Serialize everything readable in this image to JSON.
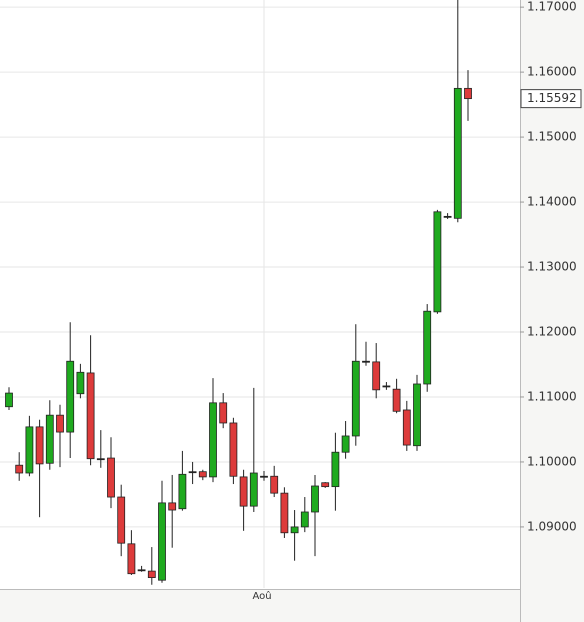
{
  "chart_data": {
    "type": "candlestick",
    "categories": [
      null,
      null,
      null,
      null,
      null,
      null,
      null,
      null,
      null,
      null,
      null,
      null,
      null,
      null,
      null,
      null,
      null,
      null,
      null,
      null,
      null,
      null,
      null,
      null,
      null,
      "Aoû",
      null,
      null,
      null,
      null,
      null,
      null,
      null,
      null,
      null,
      null,
      null,
      null,
      null,
      null,
      null,
      null,
      null,
      null,
      null,
      null
    ],
    "open": [
      1.1085,
      1.0995,
      1.0983,
      1.1054,
      1.0998,
      1.1072,
      1.1046,
      1.1105,
      1.1137,
      1.1005,
      1.1006,
      1.0946,
      1.0874,
      1.0834,
      1.0832,
      1.0818,
      1.0937,
      1.0928,
      1.0985,
      1.0985,
      1.0977,
      1.1091,
      1.106,
      1.0977,
      1.0932,
      1.0978,
      1.0978,
      1.0952,
      1.0891,
      1.09,
      1.0923,
      1.0968,
      1.0962,
      1.1015,
      1.104,
      1.1155,
      1.1154,
      1.1117,
      1.1112,
      1.108,
      1.1025,
      1.112,
      1.1231,
      1.1378,
      1.1375,
      1.1575
    ],
    "high": [
      1.1115,
      1.1015,
      1.1071,
      1.1065,
      1.1095,
      1.1088,
      1.1215,
      1.1151,
      1.1195,
      1.1049,
      1.1038,
      1.0965,
      1.0895,
      1.084,
      1.0869,
      1.0971,
      1.098,
      1.1017,
      1.1,
      1.0988,
      1.1129,
      1.1106,
      1.1068,
      1.0988,
      1.1114,
      1.0986,
      1.0994,
      1.0961,
      1.0926,
      1.0946,
      1.098,
      1.0969,
      1.1045,
      1.1063,
      1.1212,
      1.1185,
      1.1183,
      1.1123,
      1.1128,
      1.1094,
      1.1134,
      1.1243,
      1.1388,
      1.1383,
      1.1711,
      1.1603
    ],
    "low": [
      1.108,
      1.0971,
      1.0978,
      1.0915,
      1.0988,
      1.0992,
      1.1006,
      1.1098,
      1.0995,
      1.0991,
      1.0929,
      1.0855,
      1.0826,
      1.0831,
      1.0811,
      1.0814,
      1.0868,
      1.0925,
      1.0966,
      1.0972,
      1.0969,
      1.1052,
      1.0966,
      1.0894,
      1.0923,
      1.0971,
      1.0946,
      1.0883,
      1.0848,
      1.0892,
      1.0855,
      1.096,
      1.0925,
      1.1005,
      1.1025,
      1.1148,
      1.1098,
      1.1111,
      1.1075,
      1.1017,
      1.1017,
      1.1108,
      1.1228,
      1.1374,
      1.1369,
      1.1525
    ],
    "close": [
      1.1106,
      1.0983,
      1.1054,
      1.0997,
      1.1072,
      1.1046,
      1.1155,
      1.1138,
      1.1005,
      1.1005,
      1.0946,
      1.0875,
      1.0828,
      1.0834,
      1.0822,
      1.0937,
      1.0926,
      1.0981,
      1.0985,
      1.0977,
      1.1091,
      1.106,
      1.0978,
      1.0932,
      1.0983,
      1.0978,
      1.0952,
      1.0891,
      1.09,
      1.0923,
      1.0963,
      1.0962,
      1.1015,
      1.104,
      1.1155,
      1.1155,
      1.1111,
      1.1117,
      1.1078,
      1.1026,
      1.112,
      1.1232,
      1.1385,
      1.1378,
      1.1575,
      1.15592
    ],
    "last_price": 1.15592,
    "up_color": "#1faa1f",
    "down_color": "#dd3b3b",
    "ylim": [
      1.0806,
      1.1711
    ],
    "yticks": [
      {
        "value": 1.09,
        "label": "1.09000"
      },
      {
        "value": 1.1,
        "label": "1.10000"
      },
      {
        "value": 1.11,
        "label": "1.11000"
      },
      {
        "value": 1.12,
        "label": "1.12000"
      },
      {
        "value": 1.13,
        "label": "1.13000"
      },
      {
        "value": 1.14,
        "label": "1.14000"
      },
      {
        "value": 1.15,
        "label": "1.15000"
      },
      {
        "value": 1.16,
        "label": "1.16000"
      },
      {
        "value": 1.17,
        "label": "1.17000"
      }
    ],
    "grid": true
  }
}
